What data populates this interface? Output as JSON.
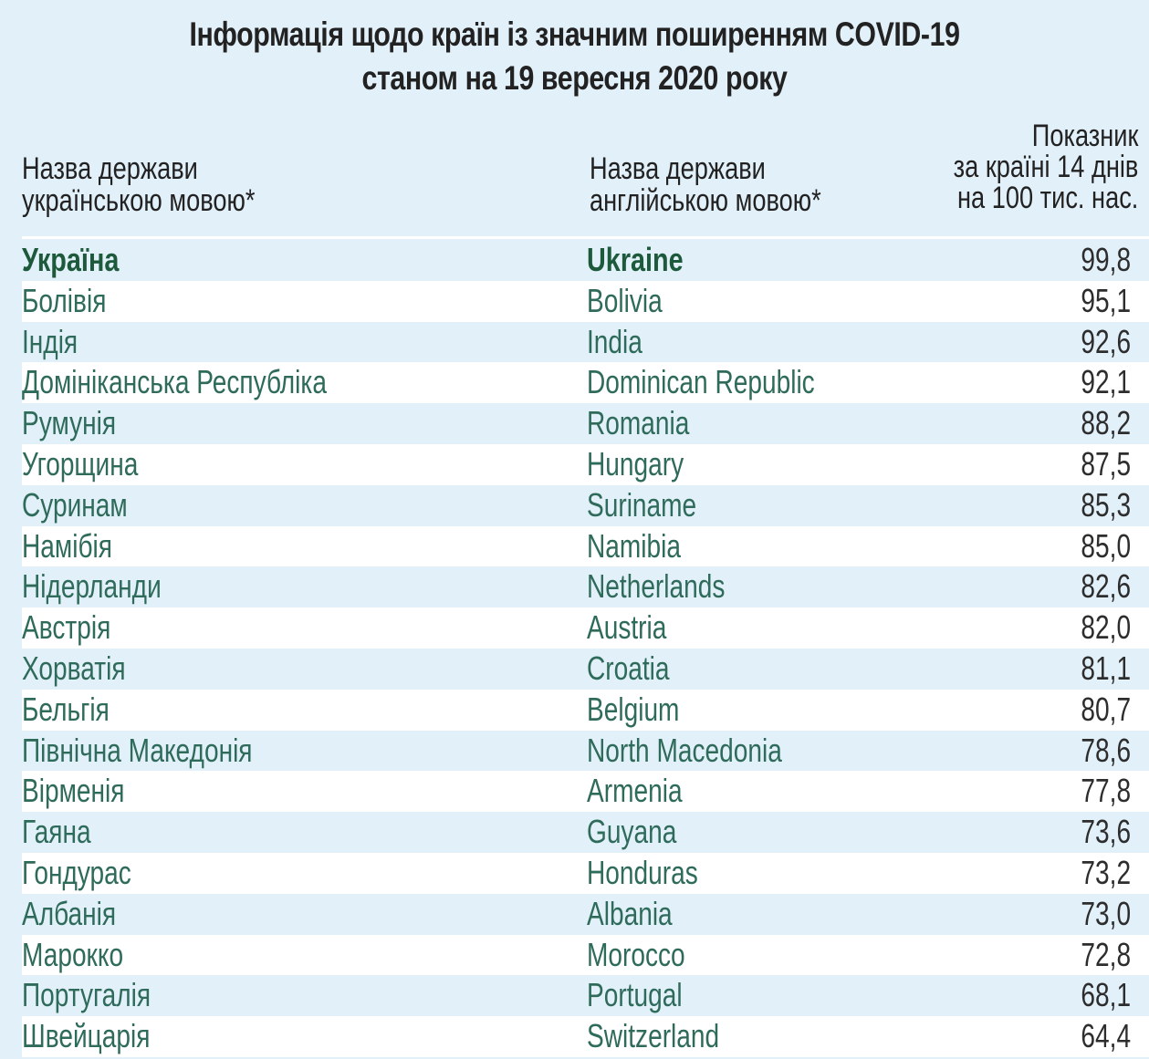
{
  "title": {
    "line1": "Інформація щодо країн із значним поширенням COVID-19",
    "line2": "станом на 19 вересня 2020 року"
  },
  "headers": {
    "ua": [
      "Назва держави",
      "українською мовою*"
    ],
    "en": [
      "Назва держави",
      "англійською мовою*"
    ],
    "value": [
      "Показник",
      "за країні 14 днів",
      "на 100 тис. нас."
    ]
  },
  "colors": {
    "background": "#e2f0f9",
    "row_alt": "#ffffff",
    "country_text": "#2f6b5a",
    "highlight_text": "#1d5a3c"
  },
  "rows": [
    {
      "ua": "Україна",
      "en": "Ukraine",
      "value": "99,8",
      "highlight": true
    },
    {
      "ua": "Болівія",
      "en": "Bolivia",
      "value": "95,1"
    },
    {
      "ua": "Індія",
      "en": "India",
      "value": "92,6"
    },
    {
      "ua": "Домініканська Республіка",
      "en": "Dominican Republic",
      "value": "92,1"
    },
    {
      "ua": "Румунія",
      "en": "Romania",
      "value": "88,2"
    },
    {
      "ua": "Угорщина",
      "en": "Hungary",
      "value": "87,5"
    },
    {
      "ua": "Суринам",
      "en": "Suriname",
      "value": "85,3"
    },
    {
      "ua": "Намібія",
      "en": "Namibia",
      "value": "85,0"
    },
    {
      "ua": "Нідерланди",
      "en": "Netherlands",
      "value": "82,6"
    },
    {
      "ua": "Австрія",
      "en": "Austria",
      "value": "82,0"
    },
    {
      "ua": "Хорватія",
      "en": "Croatia",
      "value": "81,1"
    },
    {
      "ua": "Бельгія",
      "en": "Belgium",
      "value": "80,7"
    },
    {
      "ua": "Північна Македонія",
      "en": "North Macedonia",
      "value": "78,6"
    },
    {
      "ua": "Вірменія",
      "en": "Armenia",
      "value": "77,8"
    },
    {
      "ua": "Гаяна",
      "en": "Guyana",
      "value": "73,6"
    },
    {
      "ua": "Гондурас",
      "en": "Honduras",
      "value": "73,2"
    },
    {
      "ua": "Албанія",
      "en": "Albania",
      "value": "73,0"
    },
    {
      "ua": "Марокко",
      "en": "Morocco",
      "value": "72,8"
    },
    {
      "ua": "Португалія",
      "en": "Portugal",
      "value": "68,1"
    },
    {
      "ua": "Швейцарія",
      "en": "Switzerland",
      "value": "64,4"
    }
  ]
}
